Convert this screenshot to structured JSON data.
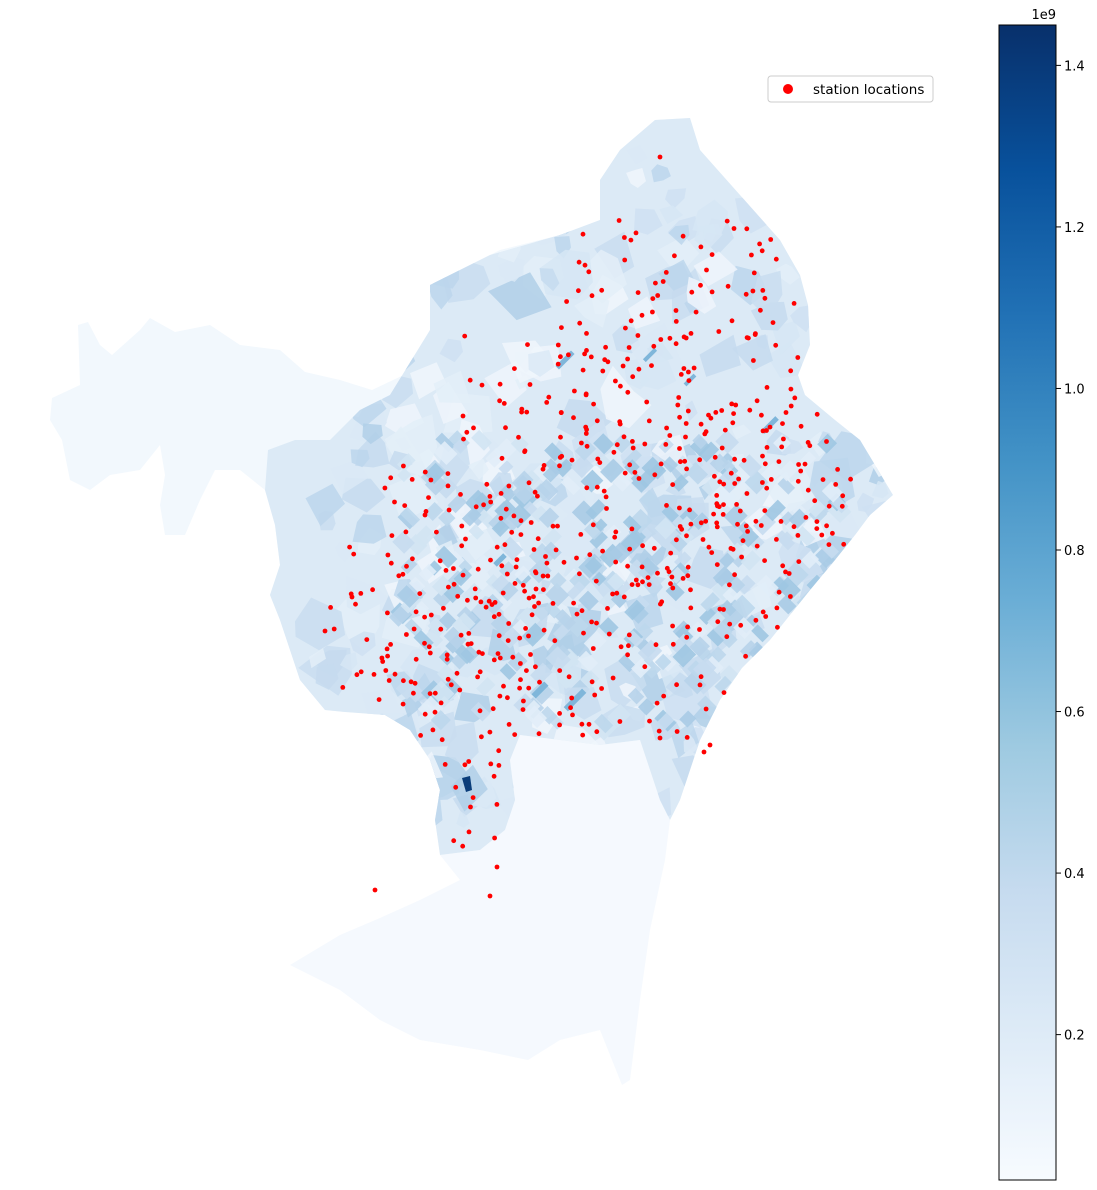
{
  "chart_data": {
    "type": "choropleth-map",
    "colormap": "Blues",
    "color_low": "#f7fbff",
    "color_high": "#08306b",
    "marker_color": "#ff0000",
    "axis_visible": false,
    "colorbar": {
      "orientation": "vertical",
      "location": "right",
      "range": [
        0.02,
        1.45
      ],
      "ticks": [
        {
          "value": 0.2,
          "label": "0.2"
        },
        {
          "value": 0.4,
          "label": "0.4"
        },
        {
          "value": 0.6,
          "label": "0.6"
        },
        {
          "value": 0.8,
          "label": "0.8"
        },
        {
          "value": 1.0,
          "label": "1.0"
        },
        {
          "value": 1.2,
          "label": "1.2"
        },
        {
          "value": 1.4,
          "label": "1.4"
        }
      ],
      "offset_label": "1e9"
    },
    "legend": {
      "location": "upper-right",
      "entries": [
        {
          "label": "station locations",
          "marker": "circle",
          "color": "#ff0000"
        }
      ]
    },
    "series": [
      {
        "name": "station locations",
        "kind": "scatter"
      }
    ]
  }
}
